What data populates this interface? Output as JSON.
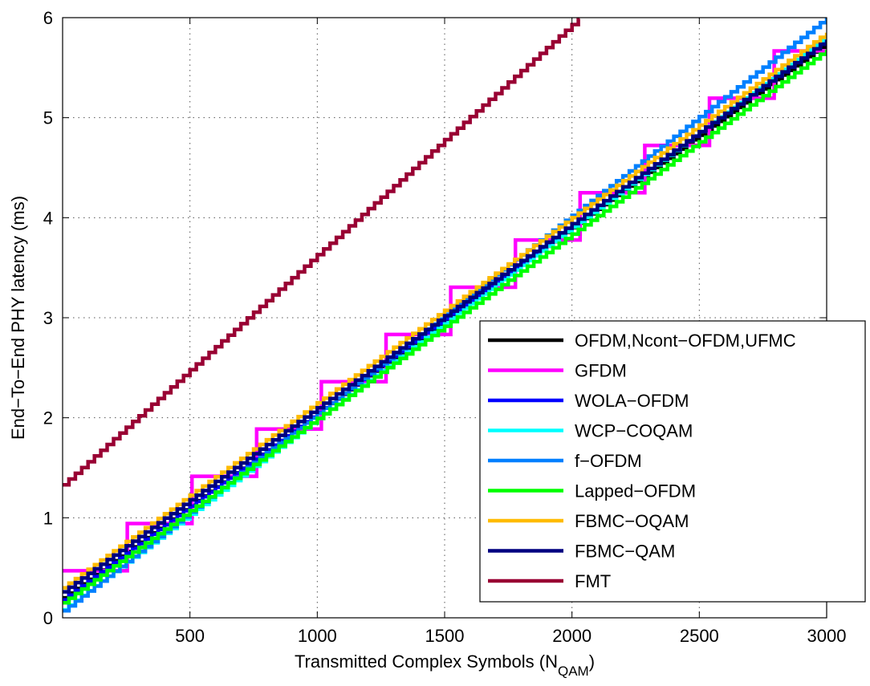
{
  "chart_data": {
    "type": "line",
    "xlabel": "Transmitted Complex Symbols (N",
    "xlabel_sub": "QAM",
    "xlabel_close": ")",
    "ylabel": "End−To−End PHY latency (ms)",
    "xlim": [
      0,
      3000
    ],
    "ylim": [
      0,
      6
    ],
    "xticks": [
      500,
      1000,
      1500,
      2000,
      2500,
      3000
    ],
    "xtick_labels": [
      "500",
      "1000",
      "1500",
      "2000",
      "2500",
      "3000"
    ],
    "yticks": [
      0,
      1,
      2,
      3,
      4,
      5,
      6
    ],
    "ytick_labels": [
      "0",
      "1",
      "2",
      "3",
      "4",
      "5",
      "6"
    ],
    "grid": true,
    "legend_position": "bottom-right",
    "series": [
      {
        "name": "OFDM,Ncont−OFDM,UFMC",
        "color": "#000000",
        "x": [
          0,
          3000
        ],
        "y": [
          0.2,
          5.75
        ]
      },
      {
        "name": "GFDM",
        "color": "#ff00ff",
        "x": [
          0,
          3000
        ],
        "y": [
          0.47,
          6.05
        ]
      },
      {
        "name": "WOLA−OFDM",
        "color": "#0000ff",
        "x": [
          0,
          3000
        ],
        "y": [
          0.18,
          5.8
        ]
      },
      {
        "name": "WCP−COQAM",
        "color": "#00ffff",
        "x": [
          0,
          3000
        ],
        "y": [
          0.08,
          5.82
        ]
      },
      {
        "name": "f−OFDM",
        "color": "#0080ff",
        "x": [
          0,
          3000
        ],
        "y": [
          0.07,
          6.0
        ]
      },
      {
        "name": "Lapped−OFDM",
        "color": "#00ff00",
        "x": [
          0,
          3000
        ],
        "y": [
          0.15,
          5.68
        ]
      },
      {
        "name": "FBMC−OQAM",
        "color": "#ffbb00",
        "x": [
          0,
          3000
        ],
        "y": [
          0.3,
          5.85
        ]
      },
      {
        "name": "FBMC−QAM",
        "color": "#000080",
        "x": [
          0,
          3000
        ],
        "y": [
          0.26,
          5.78
        ]
      },
      {
        "name": "FMT",
        "color": "#990033",
        "x": [
          0,
          2030
        ],
        "y": [
          1.33,
          6.0
        ]
      }
    ]
  }
}
